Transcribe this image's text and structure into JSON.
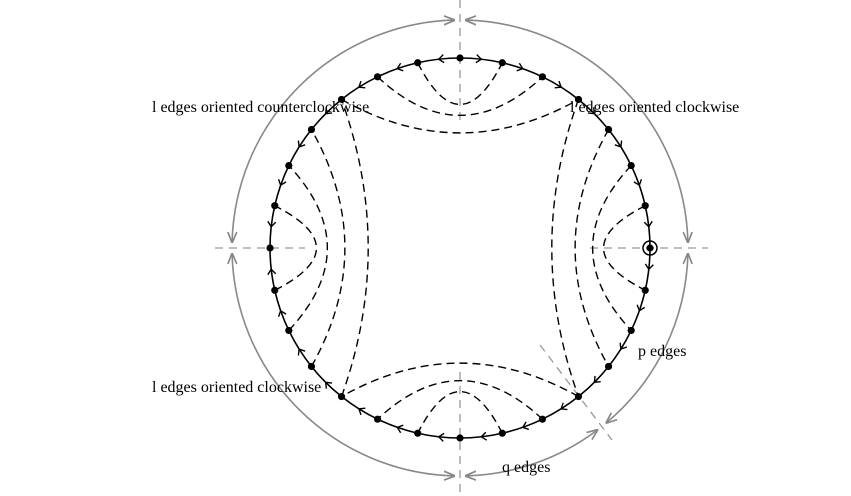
{
  "labels": {
    "top_left": "l edges oriented counterclockwise",
    "top_right": "l edges oriented clockwise",
    "bottom_left": "l edges oriented clockwise",
    "p": "p edges",
    "q": "q edges"
  }
}
